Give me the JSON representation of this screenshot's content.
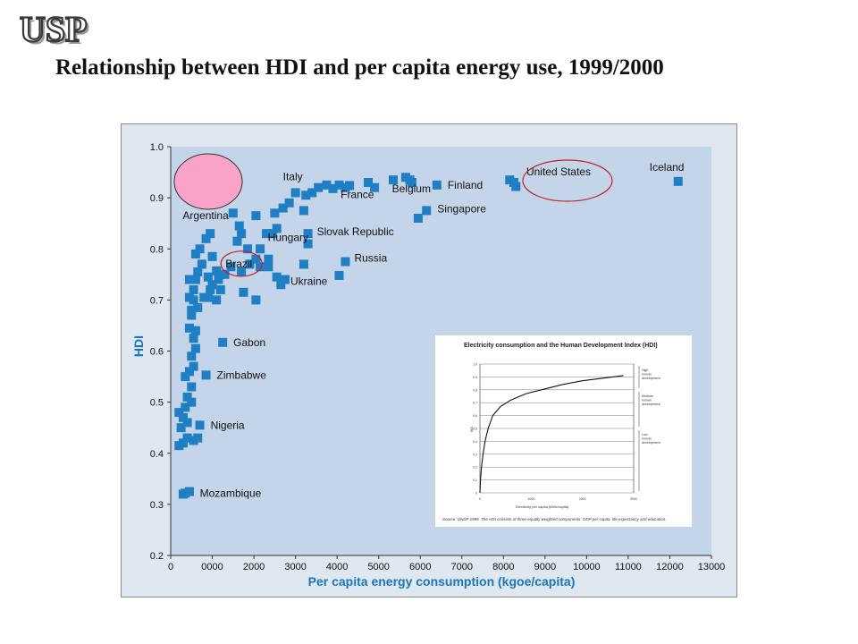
{
  "slide": {
    "logo_text": "USP",
    "title": "Relationship between HDI and per capita energy use, 1999/2000"
  },
  "chart_data": [
    {
      "type": "scatter",
      "title": "",
      "xlabel": "Per capita energy consumption (kgoe/capita)",
      "ylabel": "HDI",
      "xlim": [
        0,
        13000
      ],
      "ylim": [
        0.2,
        1.0
      ],
      "x_tick_labels": [
        "0",
        "0000",
        "2000",
        "3000",
        "4000",
        "5000",
        "6000",
        "7000",
        "8000",
        "9000",
        "10000",
        "11000",
        "12000",
        "13000"
      ],
      "y_tick_labels": [
        "0.2",
        "0.3",
        "0.4",
        "0.5",
        "0.6",
        "0.7",
        "0.8",
        "0.9",
        "1.0"
      ],
      "marker_color": "#1e7fc4",
      "labeled_points": [
        {
          "name": "Iceland",
          "x": 12200,
          "y": 0.932
        },
        {
          "name": "United States",
          "x": 8250,
          "y": 0.93
        },
        {
          "name": "Finland",
          "x": 6400,
          "y": 0.925
        },
        {
          "name": "Belgium",
          "x": 5750,
          "y": 0.935
        },
        {
          "name": "France",
          "x": 4300,
          "y": 0.924
        },
        {
          "name": "Italy",
          "x": 3000,
          "y": 0.91
        },
        {
          "name": "Singapore",
          "x": 6150,
          "y": 0.875
        },
        {
          "name": "Argentina",
          "x": 2050,
          "y": 0.865
        },
        {
          "name": "Hungary",
          "x": 2550,
          "y": 0.84
        },
        {
          "name": "Slovak Republic",
          "x": 3300,
          "y": 0.83
        },
        {
          "name": "Russia",
          "x": 4200,
          "y": 0.775
        },
        {
          "name": "Ukraine",
          "x": 2750,
          "y": 0.74
        },
        {
          "name": "Brazil",
          "x": 1100,
          "y": 0.757
        },
        {
          "name": "Gabon",
          "x": 1250,
          "y": 0.617
        },
        {
          "name": "Zimbabwe",
          "x": 850,
          "y": 0.553
        },
        {
          "name": "Nigeria",
          "x": 700,
          "y": 0.455
        },
        {
          "name": "Mozambique",
          "x": 400,
          "y": 0.322
        }
      ],
      "points": [
        [
          12200,
          0.932
        ],
        [
          8250,
          0.93
        ],
        [
          8150,
          0.935
        ],
        [
          8300,
          0.922
        ],
        [
          6400,
          0.925
        ],
        [
          5750,
          0.935
        ],
        [
          5650,
          0.94
        ],
        [
          5800,
          0.93
        ],
        [
          5350,
          0.935
        ],
        [
          4900,
          0.92
        ],
        [
          4750,
          0.93
        ],
        [
          4300,
          0.924
        ],
        [
          4200,
          0.92
        ],
        [
          4050,
          0.925
        ],
        [
          3900,
          0.918
        ],
        [
          3750,
          0.925
        ],
        [
          3550,
          0.92
        ],
        [
          3400,
          0.91
        ],
        [
          3250,
          0.905
        ],
        [
          3000,
          0.91
        ],
        [
          2850,
          0.89
        ],
        [
          3200,
          0.875
        ],
        [
          2700,
          0.88
        ],
        [
          2500,
          0.87
        ],
        [
          6150,
          0.875
        ],
        [
          5950,
          0.86
        ],
        [
          2050,
          0.865
        ],
        [
          1500,
          0.87
        ],
        [
          2550,
          0.84
        ],
        [
          2300,
          0.83
        ],
        [
          2450,
          0.83
        ],
        [
          1650,
          0.845
        ],
        [
          1700,
          0.83
        ],
        [
          950,
          0.83
        ],
        [
          850,
          0.82
        ],
        [
          3300,
          0.83
        ],
        [
          3300,
          0.81
        ],
        [
          2150,
          0.8
        ],
        [
          1850,
          0.8
        ],
        [
          1600,
          0.815
        ],
        [
          4200,
          0.775
        ],
        [
          4050,
          0.748
        ],
        [
          3200,
          0.77
        ],
        [
          2750,
          0.74
        ],
        [
          2650,
          0.73
        ],
        [
          2550,
          0.745
        ],
        [
          2350,
          0.78
        ],
        [
          2350,
          0.765
        ],
        [
          2150,
          0.765
        ],
        [
          2050,
          0.78
        ],
        [
          1900,
          0.77
        ],
        [
          1700,
          0.755
        ],
        [
          1450,
          0.765
        ],
        [
          1300,
          0.75
        ],
        [
          1100,
          0.757
        ],
        [
          1150,
          0.74
        ],
        [
          1000,
          0.73
        ],
        [
          950,
          0.72
        ],
        [
          900,
          0.745
        ],
        [
          900,
          0.705
        ],
        [
          800,
          0.705
        ],
        [
          750,
          0.77
        ],
        [
          650,
          0.755
        ],
        [
          600,
          0.74
        ],
        [
          550,
          0.72
        ],
        [
          450,
          0.705
        ],
        [
          650,
          0.685
        ],
        [
          500,
          0.68
        ],
        [
          1200,
          0.72
        ],
        [
          1100,
          0.7
        ],
        [
          1750,
          0.715
        ],
        [
          2050,
          0.7
        ],
        [
          600,
          0.79
        ],
        [
          700,
          0.8
        ],
        [
          1000,
          0.785
        ],
        [
          1200,
          0.75
        ],
        [
          550,
          0.7
        ],
        [
          450,
          0.74
        ],
        [
          500,
          0.67
        ],
        [
          450,
          0.645
        ],
        [
          600,
          0.64
        ],
        [
          550,
          0.625
        ],
        [
          600,
          0.605
        ],
        [
          500,
          0.59
        ],
        [
          1250,
          0.617
        ],
        [
          850,
          0.553
        ],
        [
          550,
          0.57
        ],
        [
          450,
          0.56
        ],
        [
          350,
          0.55
        ],
        [
          500,
          0.53
        ],
        [
          400,
          0.51
        ],
        [
          500,
          0.5
        ],
        [
          350,
          0.49
        ],
        [
          200,
          0.48
        ],
        [
          300,
          0.47
        ],
        [
          400,
          0.46
        ],
        [
          250,
          0.45
        ],
        [
          700,
          0.455
        ],
        [
          650,
          0.43
        ],
        [
          550,
          0.425
        ],
        [
          400,
          0.43
        ],
        [
          300,
          0.42
        ],
        [
          200,
          0.415
        ],
        [
          350,
          0.322
        ],
        [
          450,
          0.325
        ],
        [
          300,
          0.32
        ]
      ],
      "highlight_circles": [
        {
          "label": "United States",
          "stroke": "#c0202a"
        },
        {
          "label": "Brazil",
          "stroke": "#c0202a"
        }
      ],
      "pink_marker": {
        "fill": "#f9a3c9",
        "stroke": "#333333"
      }
    },
    {
      "type": "line",
      "title": "Electricity consumption and the Human Development Index (HDI)",
      "xlabel": "Electricity per capita (kWh/capita)",
      "ylabel": "HDI",
      "xlim": [
        0,
        3000
      ],
      "ylim": [
        0,
        1.0
      ],
      "x_tick_labels": [
        "0",
        "1000",
        "2000",
        "3000"
      ],
      "y_tick_labels": [
        "0",
        "0.1",
        "0.2",
        "0.3",
        "0.4",
        "0.5",
        "0.6",
        "0.7",
        "0.8",
        "0.9",
        "1.0"
      ],
      "bands": [
        {
          "label": "High human development",
          "range": [
            0.8,
            1.0
          ]
        },
        {
          "label": "Medium human development",
          "range": [
            0.5,
            0.8
          ]
        },
        {
          "label": "Low human development",
          "range": [
            0.0,
            0.5
          ]
        }
      ],
      "curve": [
        [
          0,
          0
        ],
        [
          10,
          0.1
        ],
        [
          30,
          0.2
        ],
        [
          60,
          0.3
        ],
        [
          100,
          0.4
        ],
        [
          160,
          0.5
        ],
        [
          250,
          0.6
        ],
        [
          400,
          0.67
        ],
        [
          600,
          0.72
        ],
        [
          900,
          0.77
        ],
        [
          1200,
          0.8
        ],
        [
          1600,
          0.84
        ],
        [
          2000,
          0.87
        ],
        [
          2400,
          0.89
        ],
        [
          2800,
          0.91
        ]
      ],
      "source_note": "Source: UNDP 1999. The HDI consists of three equally weighted components: GDP per capita, life expectancy and education."
    }
  ]
}
